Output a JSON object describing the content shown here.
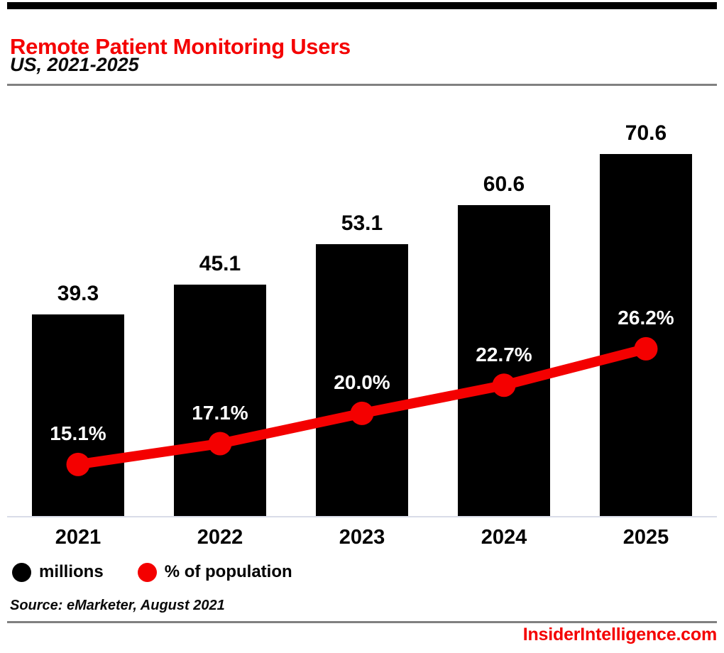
{
  "header": {
    "title": "Remote Patient Monitoring Users",
    "subtitle": "US, 2021-2025"
  },
  "chart_data": {
    "type": "combo",
    "categories": [
      "2021",
      "2022",
      "2023",
      "2024",
      "2025"
    ],
    "series": [
      {
        "name": "millions",
        "type": "bar",
        "color": "#000000",
        "values": [
          39.3,
          45.1,
          53.1,
          60.6,
          70.6
        ],
        "labels": [
          "39.3",
          "45.1",
          "53.1",
          "60.6",
          "70.6"
        ]
      },
      {
        "name": "% of population",
        "type": "line",
        "color": "#f40000",
        "values": [
          15.1,
          17.1,
          20.0,
          22.7,
          26.2
        ],
        "labels": [
          "15.1%",
          "17.1%",
          "20.0%",
          "22.7%",
          "26.2%"
        ]
      }
    ],
    "value_labels_shown": true,
    "grid": false,
    "legend_position": "bottom-left"
  },
  "legend": {
    "items": [
      {
        "label": "millions",
        "color": "#000000"
      },
      {
        "label": "% of population",
        "color": "#f40000"
      }
    ]
  },
  "source": "Source: eMarketer, August 2021",
  "branding": "InsiderIntelligence.com",
  "colors": {
    "accent_red": "#f40000",
    "bar_black": "#000000",
    "rule_gray": "#808080",
    "baseline_gray": "#d9dce8"
  }
}
